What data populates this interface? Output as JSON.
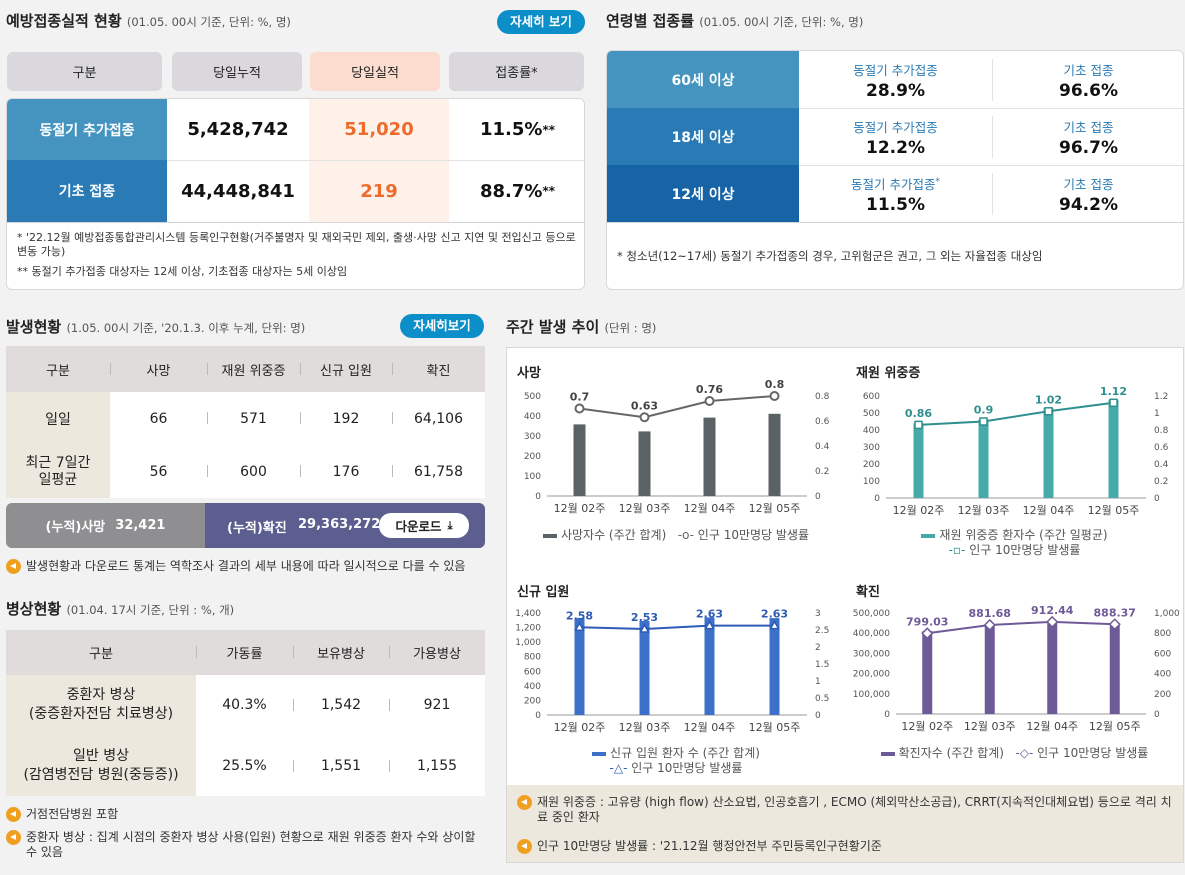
{
  "vacc": {
    "title": "예방접종실적 현황",
    "subtitle": "(01.05. 00시 기준, 단위: %, 명)",
    "more": "자세히 보기",
    "headers": [
      "구분",
      "당일누적",
      "당일실적",
      "접종률*"
    ],
    "rows": [
      {
        "label": "동절기 추가접종",
        "cum": "5,428,742",
        "today": "51,020",
        "rate": "11.5%",
        "mark": "**"
      },
      {
        "label": "기초 접종",
        "cum": "44,448,841",
        "today": "219",
        "rate": "88.7%",
        "mark": "**"
      }
    ],
    "notes": [
      "* '22.12월 예방접종통합관리시스템 등록인구현황(거주불명자 및 재외국민 제외, 출생·사망 신고 지연 및 전입신고 등으로 변동 가능)",
      "** 동절기 추가접종 대상자는 12세 이상, 기초접종 대상자는 5세 이상임"
    ]
  },
  "age": {
    "title": "연령별 접종률",
    "subtitle": "(01.05. 00시 기준, 단위: %, 명)",
    "rows": [
      {
        "label": "60세 이상",
        "l1": "동절기 추가접종",
        "mark1": "",
        "v1": "28.9%",
        "l2": "기초 접종",
        "v2": "96.6%"
      },
      {
        "label": "18세 이상",
        "l1": "동절기 추가접종",
        "mark1": "",
        "v1": "12.2%",
        "l2": "기초 접종",
        "v2": "96.7%"
      },
      {
        "label": "12세 이상",
        "l1": "동절기 추가접종",
        "mark1": "*",
        "v1": "11.5%",
        "l2": "기초 접종",
        "v2": "94.2%"
      }
    ],
    "note": "* 청소년(12~17세) 동절기 추가접종의 경우, 고위험군은 권고, 그 외는 자율접종 대상임"
  },
  "occ": {
    "title": "발생현황",
    "subtitle": "(1.05. 00시 기준, '20.1.3. 이후 누계, 단위: 명)",
    "more": "자세히보기",
    "headers": [
      "구분",
      "사망",
      "재원 위중증",
      "신규 입원",
      "확진"
    ],
    "rows": [
      {
        "label1": "일일",
        "label2": "",
        "vals": [
          "66",
          "571",
          "192",
          "64,106"
        ]
      },
      {
        "label1": "최근 7일간",
        "label2": "일평균",
        "vals": [
          "56",
          "600",
          "176",
          "61,758"
        ]
      }
    ],
    "cum_death_label": "(누적)사망",
    "cum_death": "32,421",
    "cum_conf_label": "(누적)확진",
    "cum_conf": "29,363,272",
    "download": "다운로드",
    "note": "발생현황과 다운로드 통계는 역학조사 결과의 세부 내용에 따라 일시적으로 다를 수 있음"
  },
  "beds": {
    "title": "병상현황",
    "subtitle": "(01.04. 17시 기준, 단위 : %, 개)",
    "headers": [
      "구분",
      "가동률",
      "보유병상",
      "가용병상"
    ],
    "rows": [
      {
        "label1": "중환자 병상",
        "label2": "(중증환자전담 치료병상)",
        "vals": [
          "40.3%",
          "1,542",
          "921"
        ]
      },
      {
        "label1": "일반 병상",
        "label2": "(감염병전담 병원(중등증))",
        "vals": [
          "25.5%",
          "1,551",
          "1,155"
        ]
      }
    ],
    "notes": [
      "거점전담병원 포함",
      "중환자 병상 : 집계 시점의 중환자 병상 사용(입원) 현황으로 재원 위중증 환자 수와 상이할 수 있음"
    ]
  },
  "weekly": {
    "title": "주간 발생 추이",
    "subtitle": "(단위 : 명)",
    "notes": [
      "재원 위중증 : 고유량 (high flow) 산소요법, 인공호흡기 , ECMO (체외막산소공급), CRRT(지속적인대체요법) 등으로 격리 치료 중인 환자",
      "인구 10만명당 발생률 : '21.12월 행정안전부 주민등록인구현황기준"
    ]
  },
  "chart_data": [
    {
      "type": "bar+line",
      "title": "사망",
      "categories": [
        "12월 02주",
        "12월 03주",
        "12월 04주",
        "12월 05주"
      ],
      "series": [
        {
          "name": "사망자수 (주간 합계)",
          "values": [
            358,
            323,
            392,
            411
          ]
        },
        {
          "name": "인구 10만명당 발생률",
          "values": [
            0.7,
            0.63,
            0.76,
            0.8
          ]
        }
      ],
      "yticks": [
        "500",
        "400",
        "300",
        "200",
        "100",
        "0"
      ],
      "y2ticks": [
        "0.8",
        "0.6",
        "0.4",
        "0.2",
        "0"
      ],
      "ylim": [
        0,
        500
      ],
      "y2lim": [
        0,
        0.8
      ],
      "line_labels": [
        "0.7",
        "0.63",
        "0.76",
        "0.8"
      ],
      "bar_color": "#5b6266",
      "line_color": "#666666",
      "marker": "circle"
    },
    {
      "type": "bar+line",
      "title": "재원 위중증",
      "categories": [
        "12월 02주",
        "12월 03주",
        "12월 04주",
        "12월 05주"
      ],
      "series": [
        {
          "name": "재원 위중증 환자수 (주간 일평균)",
          "values": [
            440,
            462,
            528,
            578
          ]
        },
        {
          "name": "인구 10만명당 발생률",
          "values": [
            0.86,
            0.9,
            1.02,
            1.12
          ]
        }
      ],
      "yticks": [
        "600",
        "500",
        "400",
        "300",
        "200",
        "100",
        "0"
      ],
      "y2ticks": [
        "1.2",
        "1",
        "0.8",
        "0.6",
        "0.4",
        "0.2",
        "0"
      ],
      "ylim": [
        0,
        600
      ],
      "y2lim": [
        0,
        1.2
      ],
      "line_labels": [
        "0.86",
        "0.9",
        "1.02",
        "1.12"
      ],
      "bar_color": "#45aaa8",
      "line_color": "#2e8f8e",
      "marker": "square"
    },
    {
      "type": "bar+line",
      "title": "신규 입원",
      "categories": [
        "12월 02주",
        "12월 03주",
        "12월 04주",
        "12월 05주"
      ],
      "series": [
        {
          "name": "신규 입원 환자 수 (주간 합계)",
          "values": [
            1330,
            1290,
            1340,
            1330
          ]
        },
        {
          "name": "인구 10만명당 발생률",
          "values": [
            2.58,
            2.53,
            2.63,
            2.63
          ]
        }
      ],
      "yticks": [
        "1,400",
        "1,200",
        "1,000",
        "800",
        "600",
        "400",
        "200",
        "0"
      ],
      "y2ticks": [
        "3",
        "2.5",
        "2",
        "1.5",
        "1",
        "0.5",
        "0"
      ],
      "ylim": [
        0,
        1400
      ],
      "y2lim": [
        0,
        3
      ],
      "line_labels": [
        "2.58",
        "2.53",
        "2.63",
        "2.63"
      ],
      "bar_color": "#3d70c8",
      "line_color": "#2d5bb5",
      "marker": "triangle"
    },
    {
      "type": "bar+line",
      "title": "확진",
      "categories": [
        "12월 02주",
        "12월 03주",
        "12월 04주",
        "12월 05주"
      ],
      "series": [
        {
          "name": "확진자수 (주간 합계)",
          "values": [
            410000,
            445000,
            460000,
            446000
          ]
        },
        {
          "name": "인구 10만명당 발생률",
          "values": [
            799.03,
            881.68,
            912.44,
            888.37
          ]
        }
      ],
      "yticks": [
        "500,000",
        "400,000",
        "300,000",
        "200,000",
        "100,000",
        "0"
      ],
      "y2ticks": [
        "1,000",
        "800",
        "600",
        "400",
        "200",
        "0"
      ],
      "ylim": [
        0,
        500000
      ],
      "y2lim": [
        0,
        1000
      ],
      "line_labels": [
        "799.03",
        "881.68",
        "912.44",
        "888.37"
      ],
      "bar_color": "#6f5a98",
      "line_color": "#6f5a98",
      "marker": "diamond"
    }
  ]
}
